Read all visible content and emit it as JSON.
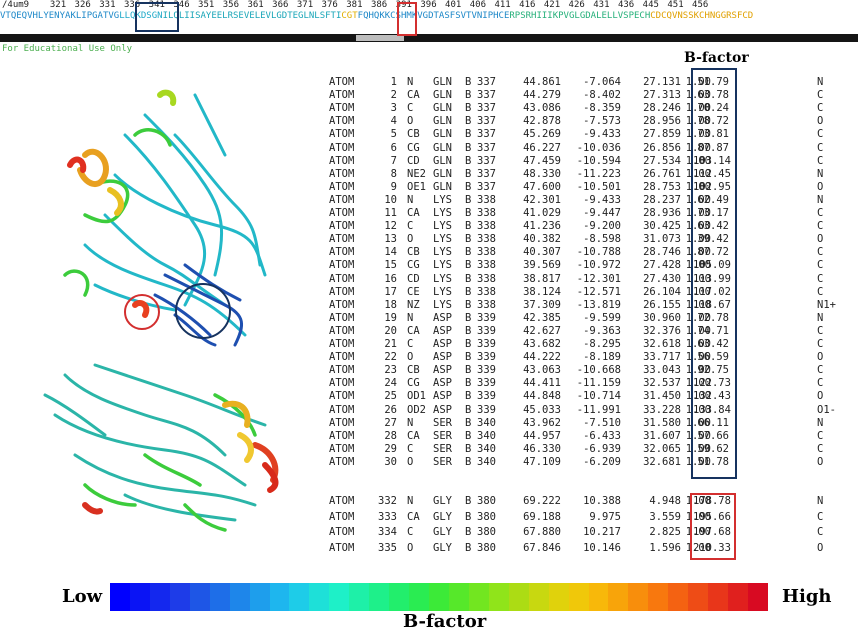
{
  "viewer": {
    "structure_id": "/4um9",
    "ruler_ticks": [
      "321",
      "326",
      "331",
      "336",
      "341",
      "346",
      "351",
      "356",
      "361",
      "366",
      "371",
      "376",
      "381",
      "386",
      "391",
      "396",
      "401",
      "406",
      "411",
      "416",
      "421",
      "426",
      "431",
      "436",
      "445",
      "451",
      "456"
    ],
    "sequence_segments": [
      {
        "text": "VTQEQVHLYENYAKLIPGATVG",
        "color": "#1e88c8"
      },
      {
        "text": "LLQKDSGN",
        "color": "#1ea9c8"
      },
      {
        "text": "ILQLIISAYEELRSEVELEVLGDTEGLNLSFTI",
        "color": "#1aa6b8"
      },
      {
        "text": "CGT",
        "color": "#e0b000"
      },
      {
        "text": "FQHQKKCSHMKVGDTASFSVTVNIPHCE",
        "color": "#1e88c8"
      },
      {
        "text": "RPSRHIIIKPVGLGDALELLVSPECH",
        "color": "#26b07a"
      },
      {
        "text": "CDCQVNSSKCHNGGRSFCD",
        "color": "#e0a000"
      }
    ],
    "edu_note": "For Educational Use Only"
  },
  "colors": {
    "blue_highlight": "#16335f",
    "red_highlight": "#d32f2f",
    "scale": [
      "#0000ff",
      "#0a14f5",
      "#1428ee",
      "#1e3ce8",
      "#1e56e6",
      "#1e6ee8",
      "#1e86ea",
      "#1e9eec",
      "#1eb6ee",
      "#1ecce8",
      "#1ee0d8",
      "#1ef0c8",
      "#1ef0a8",
      "#1ef08a",
      "#22ee6c",
      "#2aec52",
      "#3cea38",
      "#56e82a",
      "#72e620",
      "#90e41a",
      "#acdc14",
      "#c8d810",
      "#e0d20c",
      "#f0c80a",
      "#f8b80a",
      "#f8a40a",
      "#f88e0c",
      "#f8780e",
      "#f46212",
      "#ee4c16",
      "#e8361a",
      "#e0201e",
      "#d80a22"
    ]
  },
  "bfactor_label": "B-factor",
  "atoms_top": [
    {
      "rec": "ATOM",
      "serial": "1",
      "name": "N",
      "res": "GLN",
      "chain": "B",
      "seq": "337",
      "x": "44.861",
      "y": "-7.064",
      "z": "27.131",
      "occ": "1.00",
      "bf": "51.79",
      "el": "N"
    },
    {
      "rec": "ATOM",
      "serial": "2",
      "name": "CA",
      "res": "GLN",
      "chain": "B",
      "seq": "337",
      "x": "44.279",
      "y": "-8.402",
      "z": "27.313",
      "occ": "1.00",
      "bf": "63.78",
      "el": "C"
    },
    {
      "rec": "ATOM",
      "serial": "3",
      "name": "C",
      "res": "GLN",
      "chain": "B",
      "seq": "337",
      "x": "43.086",
      "y": "-8.359",
      "z": "28.246",
      "occ": "1.00",
      "bf": "70.24",
      "el": "C"
    },
    {
      "rec": "ATOM",
      "serial": "4",
      "name": "O",
      "res": "GLN",
      "chain": "B",
      "seq": "337",
      "x": "42.878",
      "y": "-7.573",
      "z": "28.956",
      "occ": "1.00",
      "bf": "78.72",
      "el": "O"
    },
    {
      "rec": "ATOM",
      "serial": "5",
      "name": "CB",
      "res": "GLN",
      "chain": "B",
      "seq": "337",
      "x": "45.269",
      "y": "-9.433",
      "z": "27.859",
      "occ": "1.00",
      "bf": "73.81",
      "el": "C"
    },
    {
      "rec": "ATOM",
      "serial": "6",
      "name": "CG",
      "res": "GLN",
      "chain": "B",
      "seq": "337",
      "x": "46.227",
      "y": "-10.036",
      "z": "26.856",
      "occ": "1.00",
      "bf": "87.87",
      "el": "C"
    },
    {
      "rec": "ATOM",
      "serial": "7",
      "name": "CD",
      "res": "GLN",
      "chain": "B",
      "seq": "337",
      "x": "47.459",
      "y": "-10.594",
      "z": "27.534",
      "occ": "1.00",
      "bf": "103.14",
      "el": "C"
    },
    {
      "rec": "ATOM",
      "serial": "8",
      "name": "NE2",
      "res": "GLN",
      "chain": "B",
      "seq": "337",
      "x": "48.330",
      "y": "-11.223",
      "z": "26.761",
      "occ": "1.00",
      "bf": "112.45",
      "el": "N"
    },
    {
      "rec": "ATOM",
      "serial": "9",
      "name": "OE1",
      "res": "GLN",
      "chain": "B",
      "seq": "337",
      "x": "47.600",
      "y": "-10.501",
      "z": "28.753",
      "occ": "1.00",
      "bf": "102.95",
      "el": "O"
    },
    {
      "rec": "ATOM",
      "serial": "10",
      "name": "N",
      "res": "LYS",
      "chain": "B",
      "seq": "338",
      "x": "42.301",
      "y": "-9.433",
      "z": "28.237",
      "occ": "1.00",
      "bf": "62.49",
      "el": "N"
    },
    {
      "rec": "ATOM",
      "serial": "11",
      "name": "CA",
      "res": "LYS",
      "chain": "B",
      "seq": "338",
      "x": "41.029",
      "y": "-9.447",
      "z": "28.936",
      "occ": "1.00",
      "bf": "73.17",
      "el": "C"
    },
    {
      "rec": "ATOM",
      "serial": "12",
      "name": "C",
      "res": "LYS",
      "chain": "B",
      "seq": "338",
      "x": "41.236",
      "y": "-9.200",
      "z": "30.425",
      "occ": "1.00",
      "bf": "63.42",
      "el": "C"
    },
    {
      "rec": "ATOM",
      "serial": "13",
      "name": "O",
      "res": "LYS",
      "chain": "B",
      "seq": "338",
      "x": "40.382",
      "y": "-8.598",
      "z": "31.073",
      "occ": "1.00",
      "bf": "39.42",
      "el": "O"
    },
    {
      "rec": "ATOM",
      "serial": "14",
      "name": "CB",
      "res": "LYS",
      "chain": "B",
      "seq": "338",
      "x": "40.307",
      "y": "-10.788",
      "z": "28.746",
      "occ": "1.00",
      "bf": "87.72",
      "el": "C"
    },
    {
      "rec": "ATOM",
      "serial": "15",
      "name": "CG",
      "res": "LYS",
      "chain": "B",
      "seq": "338",
      "x": "39.569",
      "y": "-10.972",
      "z": "27.428",
      "occ": "1.00",
      "bf": "105.09",
      "el": "C"
    },
    {
      "rec": "ATOM",
      "serial": "16",
      "name": "CD",
      "res": "LYS",
      "chain": "B",
      "seq": "338",
      "x": "38.817",
      "y": "-12.301",
      "z": "27.430",
      "occ": "1.00",
      "bf": "113.99",
      "el": "C"
    },
    {
      "rec": "ATOM",
      "serial": "17",
      "name": "CE",
      "res": "LYS",
      "chain": "B",
      "seq": "338",
      "x": "38.124",
      "y": "-12.571",
      "z": "26.104",
      "occ": "1.00",
      "bf": "117.02",
      "el": "C"
    },
    {
      "rec": "ATOM",
      "serial": "18",
      "name": "NZ",
      "res": "LYS",
      "chain": "B",
      "seq": "338",
      "x": "37.309",
      "y": "-13.819",
      "z": "26.155",
      "occ": "1.00",
      "bf": "118.67",
      "el": "N1+"
    },
    {
      "rec": "ATOM",
      "serial": "19",
      "name": "N",
      "res": "ASP",
      "chain": "B",
      "seq": "339",
      "x": "42.385",
      "y": "-9.599",
      "z": "30.960",
      "occ": "1.00",
      "bf": "72.78",
      "el": "N"
    },
    {
      "rec": "ATOM",
      "serial": "20",
      "name": "CA",
      "res": "ASP",
      "chain": "B",
      "seq": "339",
      "x": "42.627",
      "y": "-9.363",
      "z": "32.376",
      "occ": "1.00",
      "bf": "74.71",
      "el": "C"
    },
    {
      "rec": "ATOM",
      "serial": "21",
      "name": "C",
      "res": "ASP",
      "chain": "B",
      "seq": "339",
      "x": "43.682",
      "y": "-8.295",
      "z": "32.618",
      "occ": "1.00",
      "bf": "63.42",
      "el": "C"
    },
    {
      "rec": "ATOM",
      "serial": "22",
      "name": "O",
      "res": "ASP",
      "chain": "B",
      "seq": "339",
      "x": "44.222",
      "y": "-8.189",
      "z": "33.717",
      "occ": "1.00",
      "bf": "56.59",
      "el": "O"
    },
    {
      "rec": "ATOM",
      "serial": "23",
      "name": "CB",
      "res": "ASP",
      "chain": "B",
      "seq": "339",
      "x": "43.063",
      "y": "-10.668",
      "z": "33.043",
      "occ": "1.00",
      "bf": "92.75",
      "el": "C"
    },
    {
      "rec": "ATOM",
      "serial": "24",
      "name": "CG",
      "res": "ASP",
      "chain": "B",
      "seq": "339",
      "x": "44.411",
      "y": "-11.159",
      "z": "32.537",
      "occ": "1.00",
      "bf": "122.73",
      "el": "C"
    },
    {
      "rec": "ATOM",
      "serial": "25",
      "name": "OD1",
      "res": "ASP",
      "chain": "B",
      "seq": "339",
      "x": "44.848",
      "y": "-10.714",
      "z": "31.450",
      "occ": "1.00",
      "bf": "132.43",
      "el": "O"
    },
    {
      "rec": "ATOM",
      "serial": "26",
      "name": "OD2",
      "res": "ASP",
      "chain": "B",
      "seq": "339",
      "x": "45.033",
      "y": "-11.991",
      "z": "33.228",
      "occ": "1.00",
      "bf": "133.84",
      "el": "O1-"
    },
    {
      "rec": "ATOM",
      "serial": "27",
      "name": "N",
      "res": "SER",
      "chain": "B",
      "seq": "340",
      "x": "43.962",
      "y": "-7.510",
      "z": "31.580",
      "occ": "1.00",
      "bf": "66.11",
      "el": "N"
    },
    {
      "rec": "ATOM",
      "serial": "28",
      "name": "CA",
      "res": "SER",
      "chain": "B",
      "seq": "340",
      "x": "44.957",
      "y": "-6.433",
      "z": "31.607",
      "occ": "1.00",
      "bf": "57.66",
      "el": "C"
    },
    {
      "rec": "ATOM",
      "serial": "29",
      "name": "C",
      "res": "SER",
      "chain": "B",
      "seq": "340",
      "x": "46.330",
      "y": "-6.939",
      "z": "32.065",
      "occ": "1.00",
      "bf": "59.62",
      "el": "C"
    },
    {
      "rec": "ATOM",
      "serial": "30",
      "name": "O",
      "res": "SER",
      "chain": "B",
      "seq": "340",
      "x": "47.109",
      "y": "-6.209",
      "z": "32.681",
      "occ": "1.00",
      "bf": "51.78",
      "el": "O"
    }
  ],
  "atoms_bottom": [
    {
      "rec": "ATOM",
      "serial": "332",
      "name": "N",
      "res": "GLY",
      "chain": "B",
      "seq": "380",
      "x": "69.222",
      "y": "10.388",
      "z": "4.948",
      "occ": "1.00",
      "bf": "178.78",
      "el": "N"
    },
    {
      "rec": "ATOM",
      "serial": "333",
      "name": "CA",
      "res": "GLY",
      "chain": "B",
      "seq": "380",
      "x": "69.188",
      "y": "9.975",
      "z": "3.559",
      "occ": "1.00",
      "bf": "195.66",
      "el": "C"
    },
    {
      "rec": "ATOM",
      "serial": "334",
      "name": "C",
      "res": "GLY",
      "chain": "B",
      "seq": "380",
      "x": "67.880",
      "y": "10.217",
      "z": "2.825",
      "occ": "1.00",
      "bf": "197.68",
      "el": "C"
    },
    {
      "rec": "ATOM",
      "serial": "335",
      "name": "O",
      "res": "GLY",
      "chain": "B",
      "seq": "380",
      "x": "67.846",
      "y": "10.146",
      "z": "1.596",
      "occ": "1.00",
      "bf": "210.33",
      "el": "O"
    }
  ],
  "scale": {
    "low_label": "Low",
    "high_label": "High",
    "title": "B-factor"
  }
}
